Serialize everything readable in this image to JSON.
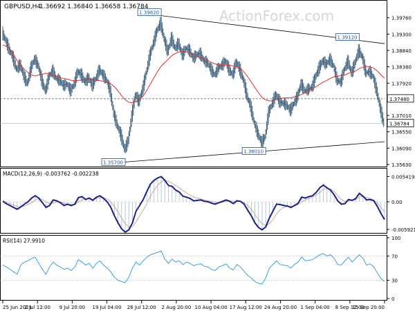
{
  "header": {
    "symbol_label": "GBPUSD,H4",
    "ohlc": "1.36692 1.36840 1.36658 1.36784"
  },
  "watermark": "ActionForex.com",
  "colors": {
    "bar": "#3b5f7a",
    "ma": "#e03030",
    "macd": "#1a1f8a",
    "macd_hist": "#5b8aa8",
    "macd_signal": "#c5a99a",
    "rsi": "#3aa0e0",
    "trendline": "#000000",
    "level_dashed": "#555555"
  },
  "chart_data": [
    {
      "type": "line",
      "title": "GBPUSD,H4",
      "ylim": [
        1.3563,
        1.3991
      ],
      "y_ticks": [
        "1.39760",
        "1.39300",
        "1.38840",
        "1.38380",
        "1.37920",
        "1.37480",
        "1.37010",
        "1.36550",
        "1.36090",
        "1.35630"
      ],
      "x_ticks": [
        "25 Jun 2021",
        "2 Jul 12:00",
        "9 Jul 20:00",
        "19 Jul 04:00",
        "26 Jul 12:00",
        "2 Aug 20:00",
        "10 Aug 04:00",
        "17 Aug 12:00",
        "24 Aug 20:00",
        "1 Sep 04:00",
        "8 Sep 12:00",
        "15 Sep 20:00"
      ],
      "series": [
        {
          "kind": "price",
          "values": [
            1.3935,
            1.3912,
            1.3885,
            1.3865,
            1.383,
            1.3845,
            1.3812,
            1.379,
            1.3835,
            1.386,
            1.3842,
            1.38,
            1.377,
            1.381,
            1.3828,
            1.3805,
            1.38,
            1.3785,
            1.379,
            1.377,
            1.379,
            1.3825,
            1.3815,
            1.3795,
            1.3808,
            1.3785,
            1.3805,
            1.383,
            1.3815,
            1.38,
            1.377,
            1.3705,
            1.3672,
            1.3645,
            1.3605,
            1.363,
            1.37,
            1.376,
            1.374,
            1.3775,
            1.382,
            1.387,
            1.3905,
            1.394,
            1.3962,
            1.3915,
            1.388,
            1.392,
            1.389,
            1.3905,
            1.387,
            1.389,
            1.3885,
            1.3862,
            1.3872,
            1.3875,
            1.3855,
            1.385,
            1.383,
            1.3815,
            1.3835,
            1.3842,
            1.3855,
            1.383,
            1.3815,
            1.3852,
            1.383,
            1.38,
            1.3755,
            1.3725,
            1.368,
            1.365,
            1.3625,
            1.364,
            1.371,
            1.3735,
            1.376,
            1.374,
            1.3735,
            1.373,
            1.3715,
            1.3735,
            1.3755,
            1.379,
            1.377,
            1.3775,
            1.378,
            1.381,
            1.3835,
            1.3855,
            1.3845,
            1.386,
            1.384,
            1.38,
            1.3795,
            1.383,
            1.3855,
            1.382,
            1.385,
            1.3885,
            1.3865,
            1.382,
            1.3825,
            1.381,
            1.377,
            1.372,
            1.3676
          ]
        },
        {
          "kind": "moving_average",
          "values": [
            1.39,
            1.3895,
            1.3888,
            1.3872,
            1.3855,
            1.3843,
            1.383,
            1.3822,
            1.3815,
            1.3812,
            1.3815,
            1.3817,
            1.382,
            1.3818,
            1.3814,
            1.381,
            1.3807,
            1.3805,
            1.3803,
            1.38,
            1.3799,
            1.38,
            1.3801,
            1.3802,
            1.3803,
            1.3801,
            1.38,
            1.3799,
            1.3797,
            1.3795,
            1.379,
            1.3782,
            1.377,
            1.3757,
            1.3745,
            1.3738,
            1.3737,
            1.374,
            1.3746,
            1.3756,
            1.3772,
            1.379,
            1.3808,
            1.3825,
            1.384,
            1.385,
            1.386,
            1.387,
            1.3876,
            1.388,
            1.3881,
            1.388,
            1.3877,
            1.3872,
            1.3867,
            1.3863,
            1.3859,
            1.3855,
            1.385,
            1.3846,
            1.3843,
            1.3842,
            1.3843,
            1.3842,
            1.384,
            1.3838,
            1.3832,
            1.3823,
            1.381,
            1.3795,
            1.378,
            1.3765,
            1.3752,
            1.3745,
            1.3742,
            1.3743,
            1.3746,
            1.3749,
            1.375,
            1.3751,
            1.3751,
            1.3753,
            1.3756,
            1.376,
            1.3765,
            1.377,
            1.3776,
            1.3782,
            1.3789,
            1.3795,
            1.38,
            1.3806,
            1.381,
            1.3812,
            1.3813,
            1.3815,
            1.382,
            1.3823,
            1.3826,
            1.3833,
            1.3837,
            1.3839,
            1.3838,
            1.3834,
            1.3826,
            1.3815,
            1.3806
          ]
        }
      ],
      "trendlines": [
        {
          "from_label": "1.39820",
          "to_label": "1.39120"
        },
        {
          "from_label": "1.35700",
          "to_label": "1.36010"
        }
      ],
      "annotations": [
        {
          "label": "1.39820",
          "x_index": 44,
          "y": 1.3982
        },
        {
          "label": "1.39120",
          "x_index": 99,
          "y": 1.3912
        },
        {
          "label": "1.35700",
          "x_index": 34,
          "y": 1.357
        },
        {
          "label": "1.36010",
          "x_index": 73,
          "y": 1.3601
        }
      ],
      "horizontal_level": {
        "label": "1.37480",
        "y": 1.3748
      },
      "current_price": {
        "label": "1.36784",
        "y": 1.36784
      }
    },
    {
      "type": "line",
      "title": "MACD(12,26,9) -0.003762 -0.002238",
      "ylim": [
        -0.00652,
        0.00592
      ],
      "y_ticks": [
        "0.005419",
        "0.00",
        "-0.005921"
      ],
      "series": [
        {
          "kind": "macd_line",
          "values": [
            0.0001,
            -0.0004,
            -0.0008,
            -0.0012,
            -0.0016,
            -0.0011,
            -0.0005,
            0.0,
            0.0008,
            0.0013,
            0.0008,
            -0.0002,
            -0.0012,
            -0.0008,
            0.0004,
            0.0002,
            -0.0002,
            -0.0008,
            -0.0005,
            -0.0008,
            -0.0005,
            0.0009,
            0.0011,
            0.0005,
            0.0008,
            0.0003,
            0.001,
            0.0013,
            0.0007,
            0.0,
            -0.0012,
            -0.003,
            -0.0045,
            -0.0058,
            -0.0065,
            -0.006,
            -0.0045,
            -0.002,
            -0.0008,
            0.0005,
            0.0022,
            0.0038,
            0.0046,
            0.0051,
            0.0054,
            0.0046,
            0.0035,
            0.0033,
            0.0025,
            0.0021,
            0.0012,
            0.001,
            0.0007,
            0.0002,
            0.0003,
            0.0004,
            0.0001,
            0.0,
            -0.0003,
            -0.0005,
            -0.0002,
            0.0001,
            0.0004,
            0.0001,
            -0.0004,
            0.0002,
            0.0001,
            -0.0005,
            -0.0018,
            -0.003,
            -0.0045,
            -0.0055,
            -0.006,
            -0.0054,
            -0.0035,
            -0.002,
            -0.0005,
            -0.0006,
            -0.0008,
            -0.0009,
            -0.0012,
            -0.0008,
            -0.0003,
            0.001,
            0.0008,
            0.0011,
            0.0013,
            0.002,
            0.003,
            0.0036,
            0.003,
            0.0025,
            0.0015,
            0.0002,
            -0.0005,
            -0.0004,
            0.0005,
            0.0003,
            0.0007,
            0.0018,
            0.0012,
            0.0004,
            0.0005,
            0.0002,
            -0.001,
            -0.0025,
            -0.0038
          ]
        },
        {
          "kind": "signal_line",
          "values": [
            0.0003,
            -0.0001,
            -0.0004,
            -0.0007,
            -0.001,
            -0.0011,
            -0.0009,
            -0.0006,
            -0.0002,
            0.0004,
            0.0007,
            0.0005,
            0.0,
            -0.0004,
            -0.0003,
            0.0,
            0.0,
            -0.0003,
            -0.0005,
            -0.0006,
            -0.0006,
            -0.0001,
            0.0004,
            0.0006,
            0.0007,
            0.0005,
            0.0007,
            0.0009,
            0.0009,
            0.0006,
            0.0,
            -0.001,
            -0.0022,
            -0.0035,
            -0.0047,
            -0.0054,
            -0.0053,
            -0.0043,
            -0.003,
            -0.0018,
            -0.0004,
            0.0012,
            0.0025,
            0.0035,
            0.0043,
            0.0046,
            0.0044,
            0.004,
            0.0035,
            0.003,
            0.0024,
            0.0019,
            0.0014,
            0.001,
            0.0008,
            0.0006,
            0.0004,
            0.0002,
            0.0001,
            -0.0001,
            -0.0002,
            -0.0001,
            0.0001,
            0.0002,
            0.0001,
            0.0001,
            0.0001,
            -0.0002,
            -0.0008,
            -0.0016,
            -0.0027,
            -0.0038,
            -0.0047,
            -0.0051,
            -0.0047,
            -0.0038,
            -0.0026,
            -0.0017,
            -0.0012,
            -0.001,
            -0.001,
            -0.0009,
            -0.0006,
            0.0,
            0.0004,
            0.0007,
            0.001,
            0.0014,
            0.002,
            0.0027,
            0.0029,
            0.0027,
            0.0022,
            0.0013,
            0.0005,
            0.0001,
            0.0002,
            0.0003,
            0.0004,
            0.001,
            0.0012,
            0.0009,
            0.0007,
            0.0004,
            -0.0002,
            -0.0012,
            -0.0022
          ]
        }
      ]
    },
    {
      "type": "line",
      "title": "RSI(14) 27.9910",
      "ylim": [
        0,
        100
      ],
      "y_ticks": [
        "100",
        "70",
        "30",
        "0"
      ],
      "levels": [
        70,
        30
      ],
      "series": [
        {
          "kind": "rsi",
          "values": [
            55,
            52,
            48,
            44,
            40,
            55,
            60,
            62,
            66,
            68,
            58,
            48,
            40,
            52,
            60,
            55,
            52,
            48,
            50,
            46,
            52,
            64,
            60,
            55,
            58,
            50,
            58,
            62,
            55,
            50,
            44,
            35,
            30,
            28,
            26,
            35,
            50,
            60,
            55,
            62,
            68,
            72,
            74,
            76,
            78,
            65,
            58,
            65,
            60,
            62,
            56,
            60,
            58,
            54,
            56,
            57,
            53,
            52,
            48,
            46,
            52,
            54,
            57,
            50,
            47,
            56,
            52,
            45,
            38,
            34,
            28,
            25,
            24,
            34,
            50,
            56,
            62,
            56,
            55,
            54,
            50,
            56,
            60,
            68,
            62,
            63,
            64,
            68,
            72,
            74,
            70,
            72,
            66,
            56,
            55,
            62,
            68,
            60,
            66,
            72,
            66,
            55,
            57,
            52,
            42,
            33,
            28
          ]
        }
      ]
    }
  ]
}
